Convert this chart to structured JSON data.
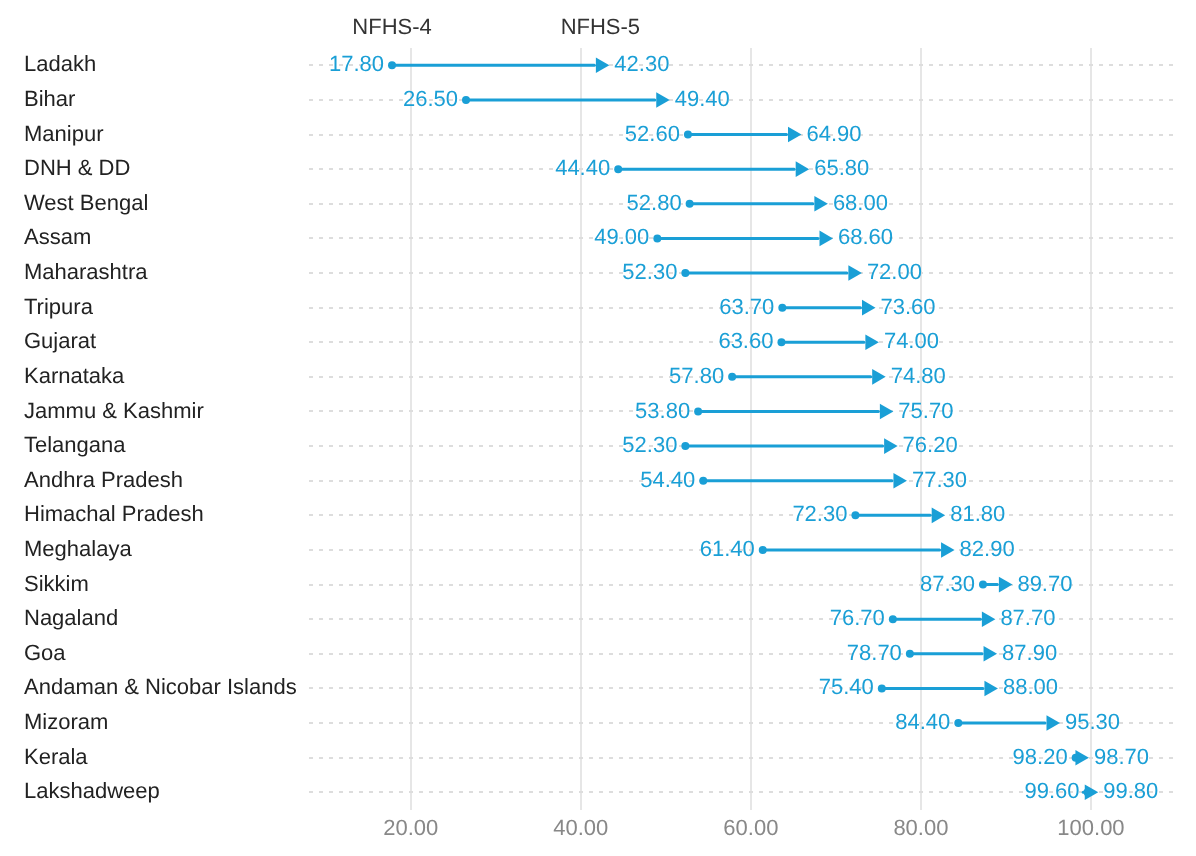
{
  "chart_data": {
    "type": "scatter",
    "orientation": "horizontal",
    "categories": [
      "Ladakh",
      "Bihar",
      "Manipur",
      "DNH & DD",
      "West Bengal",
      "Assam",
      "Maharashtra",
      "Tripura",
      "Gujarat",
      "Karnataka",
      "Jammu & Kashmir",
      "Telangana",
      "Andhra Pradesh",
      "Himachal Pradesh",
      "Meghalaya",
      "Sikkim",
      "Nagaland",
      "Goa",
      "Andaman & Nicobar Islands",
      "Mizoram",
      "Kerala",
      "Lakshadweep"
    ],
    "series": [
      {
        "name": "NFHS-4",
        "color": "#1a9fd6",
        "marker": "circle",
        "values": [
          17.8,
          26.5,
          52.6,
          44.4,
          52.8,
          49.0,
          52.3,
          63.7,
          63.6,
          57.8,
          53.8,
          52.3,
          54.4,
          72.3,
          61.4,
          87.3,
          76.7,
          78.7,
          75.4,
          84.4,
          98.2,
          99.6
        ],
        "value_labels": [
          "17.80",
          "26.50",
          "52.60",
          "44.40",
          "52.80",
          "49.00",
          "52.30",
          "63.70",
          "63.60",
          "57.80",
          "53.80",
          "52.30",
          "54.40",
          "72.30",
          "61.40",
          "87.30",
          "76.70",
          "78.70",
          "75.40",
          "84.40",
          "98.20",
          "99.60"
        ]
      },
      {
        "name": "NFHS-5",
        "color": "#1a9fd6",
        "marker": "triangle",
        "values": [
          42.3,
          49.4,
          64.9,
          65.8,
          68.0,
          68.6,
          72.0,
          73.6,
          74.0,
          74.8,
          75.7,
          76.2,
          77.3,
          81.8,
          82.9,
          89.7,
          87.7,
          87.9,
          88.0,
          95.3,
          98.7,
          99.8
        ],
        "value_labels": [
          "42.30",
          "49.40",
          "64.90",
          "65.80",
          "68.00",
          "68.60",
          "72.00",
          "73.60",
          "74.00",
          "74.80",
          "75.70",
          "76.20",
          "77.30",
          "81.80",
          "82.90",
          "89.70",
          "87.70",
          "87.90",
          "88.00",
          "95.30",
          "98.70",
          "99.80"
        ]
      }
    ],
    "xlim": [
      8,
      110
    ],
    "xticks": [
      {
        "value": 20,
        "label": "20.00"
      },
      {
        "value": 40,
        "label": "40.00"
      },
      {
        "value": 60,
        "label": "60.00"
      },
      {
        "value": 80,
        "label": "80.00"
      },
      {
        "value": 100,
        "label": "100.00"
      }
    ],
    "grid": true,
    "legend": false
  }
}
